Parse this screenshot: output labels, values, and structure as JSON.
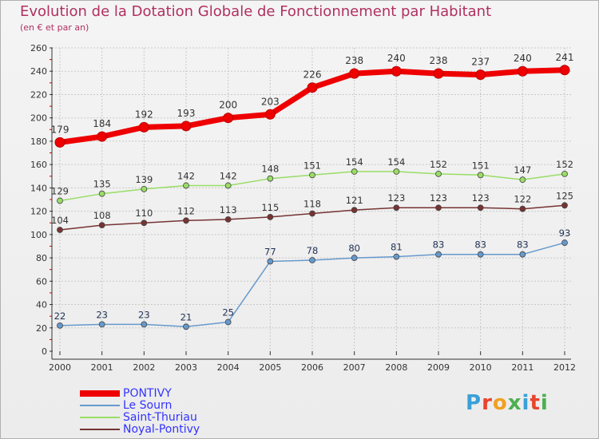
{
  "title": "Evolution de la Dotation Globale de Fonctionnement par Habitant",
  "subtitle": "(en € et par an)",
  "logo": {
    "text": "Proxiti",
    "letters": [
      "P",
      "r",
      "o",
      "x",
      "i",
      "t",
      "i"
    ],
    "colors": [
      "#3aa0d8",
      "#e8442c",
      "#f0a020",
      "#4caf50",
      "#3aa0d8",
      "#e8442c",
      "#4caf50"
    ]
  },
  "chart_data": {
    "type": "line",
    "title": "Evolution de la Dotation Globale de Fonctionnement par Habitant",
    "subtitle": "(en € et par an)",
    "xlabel": "",
    "ylabel": "",
    "ylim": [
      0,
      260
    ],
    "yticks": [
      0,
      20,
      40,
      60,
      80,
      100,
      120,
      140,
      160,
      180,
      200,
      220,
      240,
      260
    ],
    "grid": true,
    "legend_position": "bottom-left",
    "categories": [
      "2000",
      "2001",
      "2002",
      "2003",
      "2004",
      "2005",
      "2006",
      "2007",
      "2008",
      "2009",
      "2010",
      "2011",
      "2012"
    ],
    "series": [
      {
        "name": "PONTIVY",
        "color": "#ee0000",
        "label_color": "#333333",
        "values": [
          179,
          184,
          192,
          193,
          200,
          203,
          226,
          238,
          240,
          238,
          237,
          240,
          241
        ]
      },
      {
        "name": "Le Sourn",
        "color": "#6699cc",
        "label_color": "#223355",
        "values": [
          22,
          23,
          23,
          21,
          25,
          77,
          78,
          80,
          81,
          83,
          83,
          83,
          93
        ]
      },
      {
        "name": "Saint-Thuriau",
        "color": "#99dd66",
        "label_color": "#333333",
        "values": [
          129,
          135,
          139,
          142,
          142,
          148,
          151,
          154,
          154,
          152,
          151,
          147,
          152
        ]
      },
      {
        "name": "Noyal-Pontivy",
        "color": "#773333",
        "label_color": "#333333",
        "values": [
          104,
          108,
          110,
          112,
          113,
          115,
          118,
          121,
          123,
          123,
          123,
          122,
          125
        ]
      }
    ]
  }
}
